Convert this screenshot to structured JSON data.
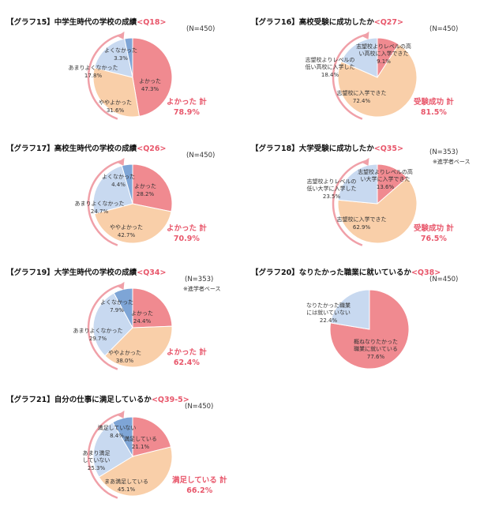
{
  "colors": {
    "pink": "#f08a90",
    "peach": "#f9cfa9",
    "lightblue": "#c8d9f0",
    "blue": "#7ea5d6",
    "accent": "#e8576b",
    "arrow": "#f0a0a8"
  },
  "chart_data": [
    {
      "type": "pie",
      "id": "g15",
      "title_prefix": "【グラフ15】中学生時代の学校の成績",
      "title_q": "<Q18>",
      "n_label": "(N=450)",
      "slices": [
        {
          "label": "よかった",
          "value": 47.3,
          "value_label": "47.3%",
          "color": "#f08a90"
        },
        {
          "label": "ややよかった",
          "value": 31.6,
          "value_label": "31.6%",
          "color": "#f9cfa9"
        },
        {
          "label": "あまりよくなかった",
          "value": 17.8,
          "value_label": "17.8%",
          "color": "#c8d9f0"
        },
        {
          "label": "よくなかった",
          "value": 3.3,
          "value_label": "3.3%",
          "color": "#7ea5d6"
        }
      ],
      "total_label": "よかった 計",
      "total_value": "78.9%",
      "note": ""
    },
    {
      "type": "pie",
      "id": "g16",
      "title_prefix": "【グラフ16】高校受験に成功したか",
      "title_q": "<Q27>",
      "n_label": "(N=450)",
      "slices": [
        {
          "label": "志望校よりレベルの高い高校に入学できた",
          "value": 9.1,
          "value_label": "9.1%",
          "color": "#f08a90"
        },
        {
          "label": "志望校に入学できた",
          "value": 72.4,
          "value_label": "72.4%",
          "color": "#f9cfa9"
        },
        {
          "label": "志望校よりレベルの低い高校に入学した",
          "value": 18.4,
          "value_label": "18.4%",
          "color": "#c8d9f0"
        }
      ],
      "total_label": "受験成功 計",
      "total_value": "81.5%",
      "note": ""
    },
    {
      "type": "pie",
      "id": "g17",
      "title_prefix": "【グラフ17】高校生時代の学校の成績",
      "title_q": "<Q26>",
      "n_label": "(N=450)",
      "slices": [
        {
          "label": "よかった",
          "value": 28.2,
          "value_label": "28.2%",
          "color": "#f08a90"
        },
        {
          "label": "ややよかった",
          "value": 42.7,
          "value_label": "42.7%",
          "color": "#f9cfa9"
        },
        {
          "label": "あまりよくなかった",
          "value": 24.7,
          "value_label": "24.7%",
          "color": "#c8d9f0"
        },
        {
          "label": "よくなかった",
          "value": 4.4,
          "value_label": "4.4%",
          "color": "#7ea5d6"
        }
      ],
      "total_label": "よかった 計",
      "total_value": "70.9%",
      "note": ""
    },
    {
      "type": "pie",
      "id": "g18",
      "title_prefix": "【グラフ18】大学受験に成功したか",
      "title_q": "<Q35>",
      "n_label": "(N=353)",
      "slices": [
        {
          "label": "志望校よりレベルの高い大学に入学できた",
          "value": 13.6,
          "value_label": "13.6%",
          "color": "#f08a90"
        },
        {
          "label": "志望校に入学できた",
          "value": 62.9,
          "value_label": "62.9%",
          "color": "#f9cfa9"
        },
        {
          "label": "志望校よりレベルの低い大学に入学した",
          "value": 23.5,
          "value_label": "23.5%",
          "color": "#c8d9f0"
        }
      ],
      "total_label": "受験成功 計",
      "total_value": "76.5%",
      "note": "※進学者ベース"
    },
    {
      "type": "pie",
      "id": "g19",
      "title_prefix": "【グラフ19】大学生時代の学校の成績",
      "title_q": "<Q34>",
      "n_label": "(N=353)",
      "slices": [
        {
          "label": "よかった",
          "value": 24.4,
          "value_label": "24.4%",
          "color": "#f08a90"
        },
        {
          "label": "ややよかった",
          "value": 38.0,
          "value_label": "38.0%",
          "color": "#f9cfa9"
        },
        {
          "label": "あまりよくなかった",
          "value": 29.7,
          "value_label": "29.7%",
          "color": "#c8d9f0"
        },
        {
          "label": "よくなかった",
          "value": 7.9,
          "value_label": "7.9%",
          "color": "#7ea5d6"
        }
      ],
      "total_label": "よかった 計",
      "total_value": "62.4%",
      "note": "※進学者ベース"
    },
    {
      "type": "pie",
      "id": "g20",
      "title_prefix": "【グラフ20】なりたかった職業に就いているか",
      "title_q": "<Q38>",
      "n_label": "(N=450)",
      "slices": [
        {
          "label": "概ねなりたかった職業に就いている",
          "value": 77.6,
          "value_label": "77.6%",
          "color": "#f08a90"
        },
        {
          "label": "なりたかった職業には就いていない",
          "value": 22.4,
          "value_label": "22.4%",
          "color": "#c8d9f0"
        }
      ],
      "total_label": "",
      "total_value": "",
      "note": ""
    },
    {
      "type": "pie",
      "id": "g21",
      "title_prefix": "【グラフ21】自分の仕事に満足しているか",
      "title_q": "<Q39-5>",
      "n_label": "(N=450)",
      "slices": [
        {
          "label": "満足している",
          "value": 21.1,
          "value_label": "21.1%",
          "color": "#f08a90"
        },
        {
          "label": "まあ満足している",
          "value": 45.1,
          "value_label": "45.1%",
          "color": "#f9cfa9"
        },
        {
          "label": "あまり満足していない",
          "value": 25.3,
          "value_label": "25.3%",
          "color": "#c8d9f0"
        },
        {
          "label": "満足していない",
          "value": 8.4,
          "value_label": "8.4%",
          "color": "#7ea5d6"
        }
      ],
      "total_label": "満足している 計",
      "total_value": "66.2%",
      "note": ""
    }
  ]
}
